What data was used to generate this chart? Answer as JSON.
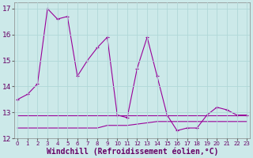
{
  "xlabel": "Windchill (Refroidissement éolien,°C)",
  "x": [
    0,
    1,
    2,
    3,
    4,
    5,
    6,
    7,
    8,
    9,
    10,
    11,
    12,
    13,
    14,
    15,
    16,
    17,
    18,
    19,
    20,
    21,
    22,
    23
  ],
  "line1": [
    13.5,
    13.7,
    14.1,
    17.0,
    16.6,
    16.7,
    14.4,
    15.0,
    15.5,
    15.9,
    12.9,
    12.8,
    14.7,
    15.9,
    14.4,
    12.9,
    12.3,
    12.4,
    12.4,
    12.9,
    13.2,
    13.1,
    12.9,
    12.9
  ],
  "line2": [
    12.9,
    12.9,
    12.9,
    12.9,
    12.9,
    12.9,
    12.9,
    12.9,
    12.9,
    12.9,
    12.9,
    12.9,
    12.9,
    12.9,
    12.9,
    12.9,
    12.9,
    12.9,
    12.9,
    12.9,
    12.9,
    12.9,
    12.9,
    12.9
  ],
  "line3": [
    12.4,
    12.4,
    12.4,
    12.4,
    12.4,
    12.4,
    12.4,
    12.4,
    12.4,
    12.5,
    12.5,
    12.5,
    12.55,
    12.6,
    12.65,
    12.65,
    12.65,
    12.65,
    12.65,
    12.65,
    12.65,
    12.65,
    12.65,
    12.65
  ],
  "line_color1": "#990099",
  "line_color2": "#990099",
  "line_color3": "#990099",
  "bg_color": "#cce9e9",
  "grid_color": "#aad4d4",
  "ylim": [
    12.0,
    17.25
  ],
  "yticks": [
    12,
    13,
    14,
    15,
    16,
    17
  ],
  "xticks": [
    0,
    1,
    2,
    3,
    4,
    5,
    6,
    7,
    8,
    9,
    10,
    11,
    12,
    13,
    14,
    15,
    16,
    17,
    18,
    19,
    20,
    21,
    22,
    23
  ],
  "tick_fontsize": 5.5,
  "xlabel_fontsize": 7.0,
  "figsize": [
    3.2,
    2.0
  ],
  "dpi": 100
}
